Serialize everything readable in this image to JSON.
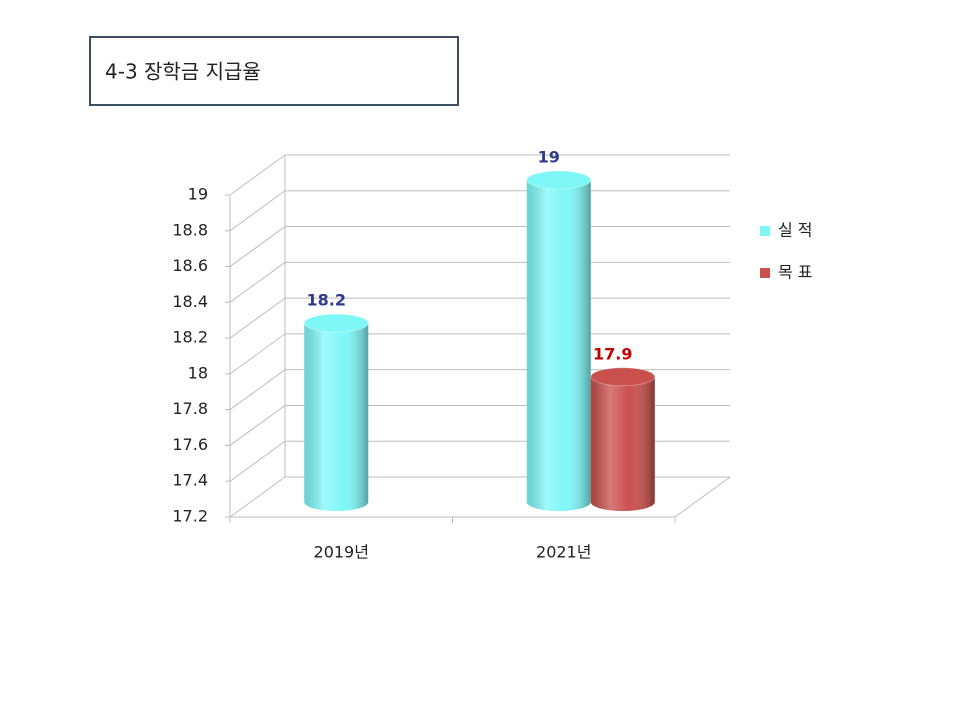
{
  "chart_data": {
    "type": "bar3d",
    "title": "4-3 장학금 지급율",
    "categories": [
      "2019년",
      "2021년"
    ],
    "series": [
      {
        "name": "실 적",
        "color": "#7ff7f7",
        "label_color": "#2e3a8c",
        "values": [
          18.2,
          19
        ]
      },
      {
        "name": "목 표",
        "color": "#c9504d",
        "label_color": "#c00000",
        "values": [
          null,
          17.9
        ]
      }
    ],
    "ylim": [
      17.2,
      19
    ],
    "yticks": [
      17.2,
      17.4,
      17.6,
      17.8,
      18,
      18.2,
      18.4,
      18.6,
      18.8,
      19
    ],
    "grid": true,
    "legend": "right"
  }
}
